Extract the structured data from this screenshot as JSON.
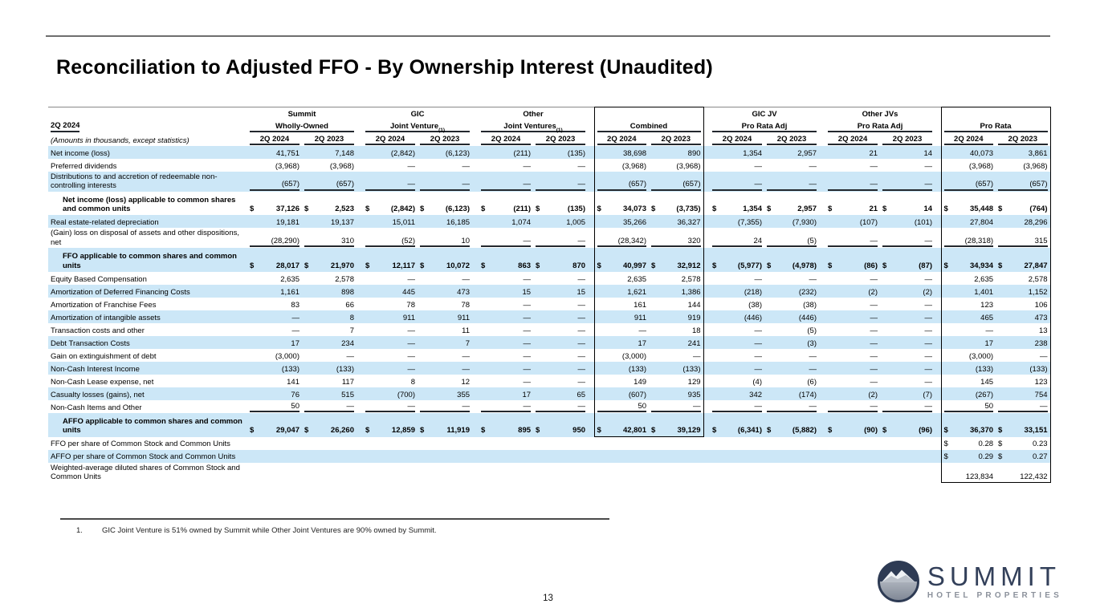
{
  "page": {
    "title": "Reconciliation to Adjusted FFO - By Ownership Interest (Unaudited)",
    "page_number": "13",
    "footnote_number": "1.",
    "footnote_text": "GIC Joint Venture is 51% owned by Summit while Other Joint Ventures are 90% owned by Summit.",
    "logo": {
      "name": "SUMMIT",
      "subtitle": "HOTEL PROPERTIES"
    }
  },
  "table": {
    "period_label": "2Q 2024",
    "units_note": "(Amounts in thousands, except statistics)",
    "col_headers": [
      "2Q 2024",
      "2Q 2023"
    ],
    "groups": [
      {
        "line1": "Summit",
        "line2": "Wholly-Owned",
        "sup": ""
      },
      {
        "line1": "GIC",
        "line2": "Joint Venture",
        "sup": "(1)"
      },
      {
        "line1": "Other",
        "line2": "Joint Ventures",
        "sup": "(1)"
      },
      {
        "line1": "",
        "line2": "Combined",
        "sup": ""
      },
      {
        "line1": "GIC JV",
        "line2": "Pro Rata Adj",
        "sup": ""
      },
      {
        "line1": "Other JVs",
        "line2": "Pro Rata Adj",
        "sup": ""
      },
      {
        "line1": "",
        "line2": "Pro Rata",
        "sup": ""
      }
    ],
    "boxes": [
      {
        "group": 3,
        "end": 18
      },
      {
        "group": 6,
        "end": 21
      }
    ],
    "rows": [
      {
        "label": "Net income (loss)",
        "shade": true,
        "dollar": "none",
        "values": [
          "41,751",
          "7,148",
          "(2,842)",
          "(6,123)",
          "(211)",
          "(135)",
          "38,698",
          "890",
          "1,354",
          "2,957",
          "21",
          "14",
          "40,073",
          "3,861"
        ]
      },
      {
        "label": "Preferred dividends",
        "shade": false,
        "dollar": "none",
        "values": [
          "(3,968)",
          "(3,968)",
          "—",
          "—",
          "—",
          "—",
          "(3,968)",
          "(3,968)",
          "—",
          "—",
          "—",
          "—",
          "(3,968)",
          "(3,968)"
        ]
      },
      {
        "label": "Distributions to and accretion of redeemable non-controlling interests",
        "shade": true,
        "uline": true,
        "dollar": "none",
        "values": [
          "(657)",
          "(657)",
          "—",
          "—",
          "—",
          "—",
          "(657)",
          "(657)",
          "—",
          "—",
          "—",
          "—",
          "(657)",
          "(657)"
        ]
      },
      {
        "label": "Net income (loss) applicable to common shares and common units",
        "shade": false,
        "bold": true,
        "indent": true,
        "dollar": "all",
        "values": [
          "37,126",
          "2,523",
          "(2,842)",
          "(6,123)",
          "(211)",
          "(135)",
          "34,073",
          "(3,735)",
          "1,354",
          "2,957",
          "21",
          "14",
          "35,448",
          "(764)"
        ]
      },
      {
        "label": "Real estate-related depreciation",
        "shade": true,
        "dollar": "none",
        "values": [
          "19,181",
          "19,137",
          "15,011",
          "16,185",
          "1,074",
          "1,005",
          "35,266",
          "36,327",
          "(7,355)",
          "(7,930)",
          "(107)",
          "(101)",
          "27,804",
          "28,296"
        ]
      },
      {
        "label": "(Gain) loss on disposal of assets and other dispositions, net",
        "shade": false,
        "uline": true,
        "dollar": "none",
        "values": [
          "(28,290)",
          "310",
          "(52)",
          "10",
          "—",
          "—",
          "(28,342)",
          "320",
          "24",
          "(5)",
          "—",
          "—",
          "(28,318)",
          "315"
        ]
      },
      {
        "label": "FFO applicable to common shares and common units",
        "shade": true,
        "bold": true,
        "indent": true,
        "dollar": "all",
        "values": [
          "28,017",
          "21,970",
          "12,117",
          "10,072",
          "863",
          "870",
          "40,997",
          "32,912",
          "(5,977)",
          "(4,978)",
          "(86)",
          "(87)",
          "34,934",
          "27,847"
        ]
      },
      {
        "label": "Equity Based Compensation",
        "shade": false,
        "dollar": "none",
        "values": [
          "2,635",
          "2,578",
          "—",
          "—",
          "—",
          "—",
          "2,635",
          "2,578",
          "—",
          "—",
          "—",
          "—",
          "2,635",
          "2,578"
        ]
      },
      {
        "label": "Amortization of Deferred Financing Costs",
        "shade": true,
        "dollar": "none",
        "values": [
          "1,161",
          "898",
          "445",
          "473",
          "15",
          "15",
          "1,621",
          "1,386",
          "(218)",
          "(232)",
          "(2)",
          "(2)",
          "1,401",
          "1,152"
        ]
      },
      {
        "label": "Amortization of Franchise Fees",
        "shade": false,
        "dollar": "none",
        "values": [
          "83",
          "66",
          "78",
          "78",
          "—",
          "—",
          "161",
          "144",
          "(38)",
          "(38)",
          "—",
          "—",
          "123",
          "106"
        ]
      },
      {
        "label": "Amortization of intangible assets",
        "shade": true,
        "dollar": "none",
        "values": [
          "—",
          "8",
          "911",
          "911",
          "—",
          "—",
          "911",
          "919",
          "(446)",
          "(446)",
          "—",
          "—",
          "465",
          "473"
        ]
      },
      {
        "label": "Transaction costs and other",
        "shade": false,
        "dollar": "none",
        "values": [
          "—",
          "7",
          "—",
          "11",
          "—",
          "—",
          "—",
          "18",
          "—",
          "(5)",
          "—",
          "—",
          "—",
          "13"
        ]
      },
      {
        "label": "Debt Transaction Costs",
        "shade": true,
        "dollar": "none",
        "values": [
          "17",
          "234",
          "—",
          "7",
          "—",
          "—",
          "17",
          "241",
          "—",
          "(3)",
          "—",
          "—",
          "17",
          "238"
        ]
      },
      {
        "label": "Gain on extinguishment of debt",
        "shade": false,
        "dollar": "none",
        "values": [
          "(3,000)",
          "—",
          "—",
          "—",
          "—",
          "—",
          "(3,000)",
          "—",
          "—",
          "—",
          "—",
          "—",
          "(3,000)",
          "—"
        ]
      },
      {
        "label": "Non-Cash Interest Income",
        "shade": true,
        "dollar": "none",
        "values": [
          "(133)",
          "(133)",
          "—",
          "—",
          "—",
          "—",
          "(133)",
          "(133)",
          "—",
          "—",
          "—",
          "—",
          "(133)",
          "(133)"
        ]
      },
      {
        "label": "Non-Cash Lease expense, net",
        "shade": false,
        "dollar": "none",
        "values": [
          "141",
          "117",
          "8",
          "12",
          "—",
          "—",
          "149",
          "129",
          "(4)",
          "(6)",
          "—",
          "—",
          "145",
          "123"
        ]
      },
      {
        "label": "Casualty losses (gains), net",
        "shade": true,
        "dollar": "none",
        "values": [
          "76",
          "515",
          "(700)",
          "355",
          "17",
          "65",
          "(607)",
          "935",
          "342",
          "(174)",
          "(2)",
          "(7)",
          "(267)",
          "754"
        ]
      },
      {
        "label": "Non-Cash Items and Other",
        "shade": false,
        "uline": true,
        "dollar": "none",
        "values": [
          "50",
          "—",
          "—",
          "—",
          "—",
          "—",
          "50",
          "—",
          "—",
          "—",
          "—",
          "—",
          "50",
          "—"
        ]
      },
      {
        "label": "AFFO applicable to common shares and common units",
        "shade": true,
        "bold": true,
        "indent": true,
        "dollar": "all",
        "values": [
          "29,047",
          "26,260",
          "12,859",
          "11,919",
          "895",
          "950",
          "42,801",
          "39,129",
          "(6,341)",
          "(5,882)",
          "(90)",
          "(96)",
          "36,370",
          "33,151"
        ]
      },
      {
        "label": "FFO per share of Common Stock and Common Units",
        "shade": false,
        "dollar": "prorata",
        "values": [
          "",
          "",
          "",
          "",
          "",
          "",
          "",
          "",
          "",
          "",
          "",
          "",
          "0.28",
          "0.23"
        ]
      },
      {
        "label": "AFFO per share of Common Stock and Common Units",
        "shade": true,
        "dollar": "prorata",
        "values": [
          "",
          "",
          "",
          "",
          "",
          "",
          "",
          "",
          "",
          "",
          "",
          "",
          "0.29",
          "0.27"
        ]
      },
      {
        "label": "Weighted-average diluted shares of Common Stock and Common Units",
        "shade": false,
        "dollar": "none",
        "values": [
          "",
          "",
          "",
          "",
          "",
          "",
          "",
          "",
          "",
          "",
          "",
          "",
          "123,834",
          "122,432"
        ]
      }
    ]
  }
}
